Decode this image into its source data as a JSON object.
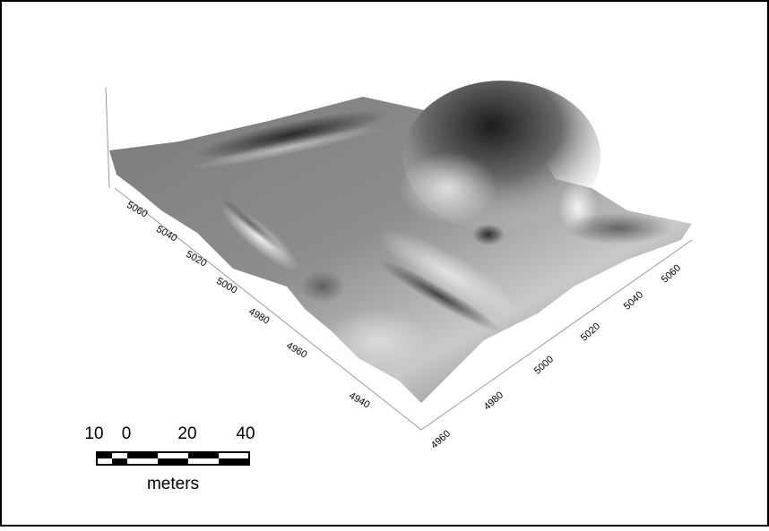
{
  "axes": {
    "left": {
      "ticks": [
        "5060",
        "5040",
        "5020",
        "5000",
        "4980",
        "4960",
        "4940"
      ]
    },
    "right": {
      "ticks": [
        "4960",
        "4980",
        "5000",
        "5020",
        "5040",
        "5060"
      ]
    }
  },
  "scale_bar": {
    "labels": [
      "10",
      "0",
      "20",
      "40"
    ],
    "unit": "meters"
  }
}
